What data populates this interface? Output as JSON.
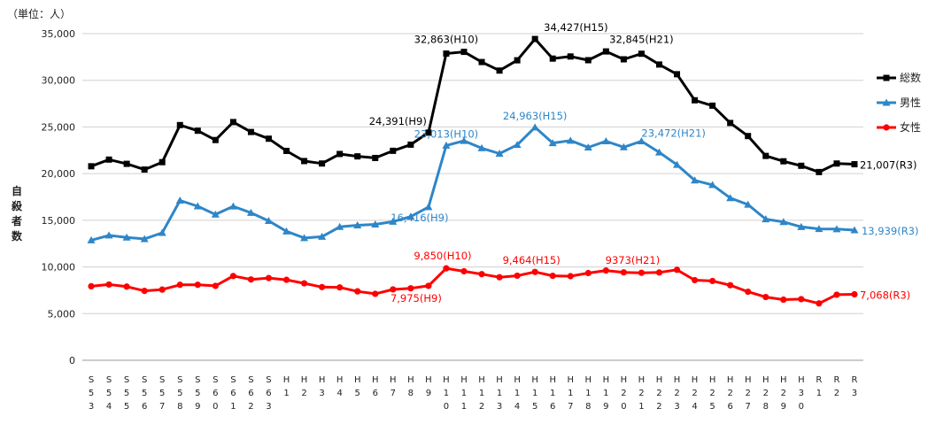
{
  "chart_data": {
    "type": "line",
    "unit_label": "（単位：人）",
    "ylabel": "自殺者数",
    "ylim": [
      0,
      35000
    ],
    "yticks": [
      0,
      5000,
      10000,
      15000,
      20000,
      25000,
      30000,
      35000
    ],
    "ytick_labels": [
      "0",
      "5,000",
      "10,000",
      "15,000",
      "20,000",
      "25,000",
      "30,000",
      "35,000"
    ],
    "grid": true,
    "legend_position": "right",
    "categories": [
      "S53",
      "S54",
      "S55",
      "S56",
      "S57",
      "S58",
      "S59",
      "S60",
      "S61",
      "S62",
      "S63",
      "H1",
      "H2",
      "H3",
      "H4",
      "H5",
      "H6",
      "H7",
      "H8",
      "H9",
      "H10",
      "H11",
      "H12",
      "H13",
      "H14",
      "H15",
      "H16",
      "H17",
      "H18",
      "H19",
      "H20",
      "H21",
      "H22",
      "H23",
      "H24",
      "H25",
      "H26",
      "H27",
      "H28",
      "H29",
      "H30",
      "R1",
      "R2",
      "R3"
    ],
    "series": [
      {
        "name": "総数",
        "color": "#000000",
        "marker": "square",
        "values": [
          20788,
          21503,
          21048,
          20434,
          21228,
          25202,
          24596,
          23599,
          25524,
          24460,
          23742,
          22436,
          21346,
          21084,
          22104,
          21851,
          21679,
          22445,
          23104,
          24391,
          32863,
          33048,
          31957,
          31042,
          32143,
          34427,
          32325,
          32552,
          32155,
          33093,
          32249,
          32845,
          31690,
          30651,
          27858,
          27283,
          25427,
          24025,
          21897,
          21321,
          20840,
          20169,
          21081,
          21007
        ],
        "annotations": [
          {
            "index": 19,
            "text": "24,391(H9)"
          },
          {
            "index": 20,
            "text": "32,863(H10)"
          },
          {
            "index": 25,
            "text": "34,427(H15)"
          },
          {
            "index": 31,
            "text": "32,845(H21)"
          },
          {
            "index": 43,
            "text": "21,007(R3)"
          }
        ]
      },
      {
        "name": "男性",
        "color": "#2e86c8",
        "marker": "triangle",
        "values": [
          12859,
          13386,
          13155,
          13000,
          13654,
          17116,
          16508,
          15624,
          16497,
          15802,
          14934,
          13818,
          13102,
          13242,
          14296,
          14468,
          14560,
          14853,
          15393,
          16416,
          23013,
          23512,
          22727,
          22144,
          23080,
          24963,
          23272,
          23540,
          22813,
          23478,
          22831,
          23472,
          22283,
          20955,
          19273,
          18787,
          17386,
          16681,
          15121,
          14826,
          14290,
          14078,
          14055,
          13939
        ],
        "annotations": [
          {
            "index": 19,
            "text": "16,416(H9)"
          },
          {
            "index": 20,
            "text": "23,013(H10)"
          },
          {
            "index": 25,
            "text": "24,963(H15)"
          },
          {
            "index": 31,
            "text": "23,472(H21)"
          },
          {
            "index": 43,
            "text": "13,939(R3)"
          }
        ]
      },
      {
        "name": "女性",
        "color": "#ff0000",
        "marker": "circle",
        "values": [
          7929,
          8117,
          7893,
          7434,
          7574,
          8086,
          8088,
          7975,
          9027,
          8658,
          8808,
          8618,
          8244,
          7842,
          7808,
          7383,
          7119,
          7592,
          7711,
          7975,
          9850,
          9536,
          9230,
          8898,
          9063,
          9464,
          9053,
          9012,
          9342,
          9615,
          9418,
          9373,
          9407,
          9696,
          8585,
          8496,
          8041,
          7344,
          6776,
          6495,
          6550,
          6091,
          7026,
          7068
        ],
        "annotations": [
          {
            "index": 19,
            "text": "7,975(H9)"
          },
          {
            "index": 20,
            "text": "9,850(H10)"
          },
          {
            "index": 25,
            "text": "9,464(H15)"
          },
          {
            "index": 31,
            "text": "9373(H21)"
          },
          {
            "index": 43,
            "text": "7,068(R3)"
          }
        ]
      }
    ]
  }
}
